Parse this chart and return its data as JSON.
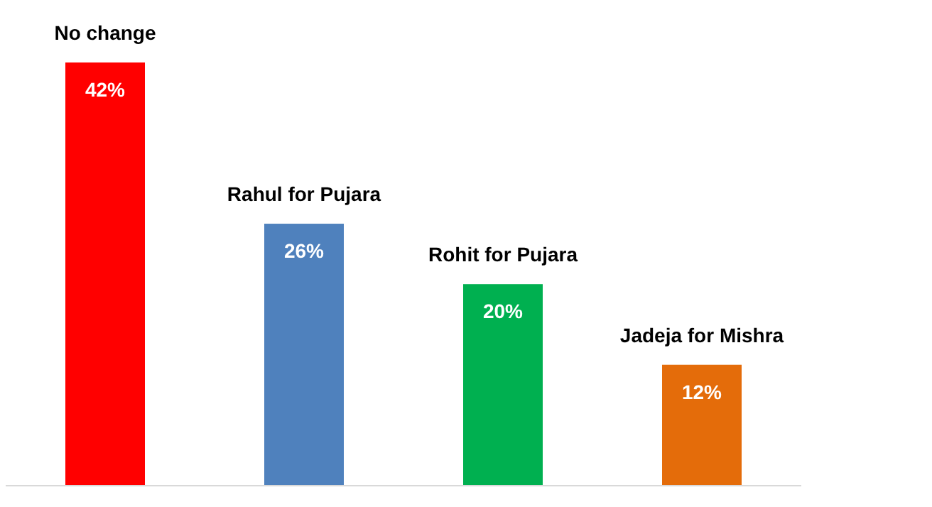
{
  "chart_data": {
    "type": "bar",
    "categories": [
      "No change",
      "Rahul for Pujara",
      "Rohit for Pujara",
      "Jadeja for Mishra"
    ],
    "values": [
      42,
      26,
      20,
      12
    ],
    "colors": [
      "#ff0000",
      "#4f81bd",
      "#00b050",
      "#e46c0a"
    ],
    "value_labels": [
      "42%",
      "26%",
      "20%",
      "12%"
    ],
    "grid": false,
    "legend": false
  }
}
